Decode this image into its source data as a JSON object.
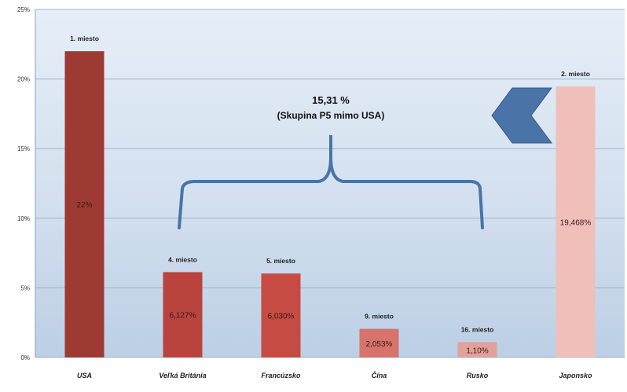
{
  "chart_data": {
    "type": "bar",
    "categories": [
      "USA",
      "Veľká Británia",
      "Francúzsko",
      "Čína",
      "Rusko",
      "Japonsko"
    ],
    "values": [
      22,
      6.127,
      6.03,
      2.053,
      1.1,
      19.468
    ],
    "value_labels": [
      "22%",
      "6,127%",
      "6,030%",
      "2,053%",
      "1,10%",
      "19,468%"
    ],
    "rank_labels": [
      "1. miesto",
      "4. miesto",
      "5. miesto",
      "9. miesto",
      "16. miesto",
      "2. miesto"
    ],
    "bar_colors": [
      "#9e3a34",
      "#b9433d",
      "#c64b43",
      "#d6736b",
      "#e2a19b",
      "#f0bfba"
    ],
    "ylim": [
      0,
      25
    ],
    "yticks": [
      0,
      5,
      10,
      15,
      20,
      25
    ],
    "ytick_labels": [
      "0%",
      "5%",
      "10%",
      "15%",
      "20%",
      "25%"
    ],
    "grid": true,
    "title": "",
    "xlabel": "",
    "ylabel": "",
    "annotation": {
      "line1": "15,31 %",
      "line2": "(Skupina P5 mimo USA)",
      "brace_color": "#4a74a8",
      "arrow_color": "#4a74a8"
    }
  }
}
